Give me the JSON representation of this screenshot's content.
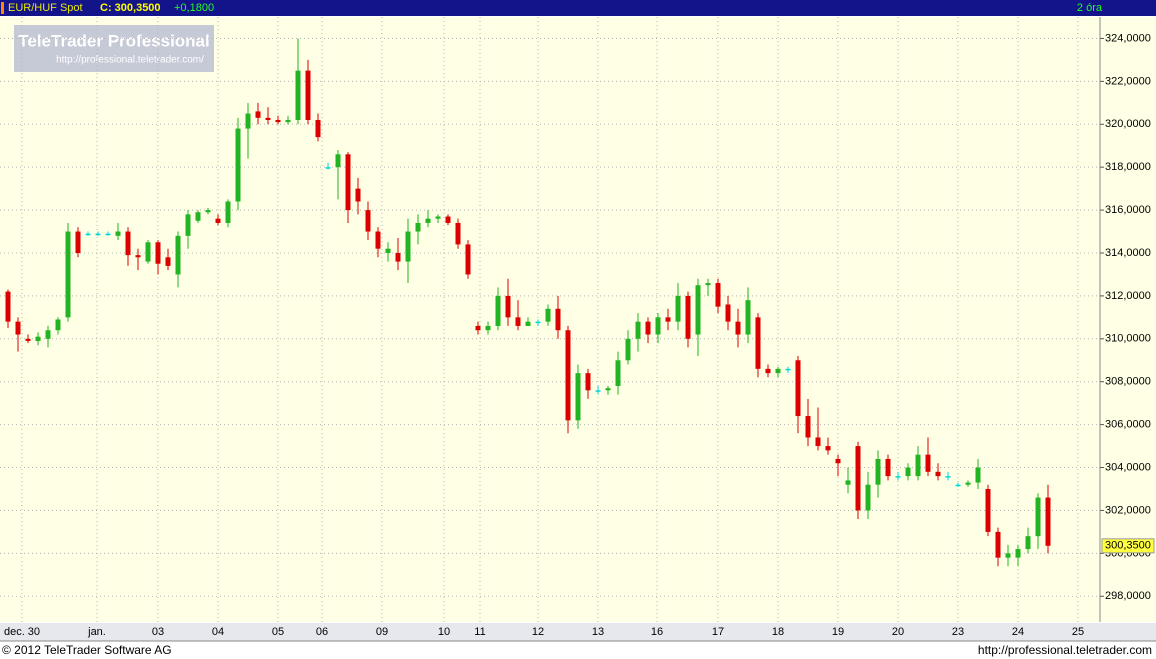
{
  "header": {
    "symbol": "EUR/HUF Spot",
    "close_text": "C: 300,3500",
    "change_text": "+0,1800",
    "interval": "2 óra"
  },
  "logo": {
    "title": "TeleTrader Professional",
    "url": "http://professional.teletrader.com/"
  },
  "footer": {
    "copyright": "© 2012 TeleTrader Software AG",
    "url": "http://professional.teletrader.com"
  },
  "chart_data": {
    "type": "candlestick",
    "up_color": "#22b422",
    "down_color": "#dd0000",
    "flat_color": "#00d8d8",
    "series": [
      {
        "name": "EUR/HUF Spot",
        "open": [
          312.2,
          310.8,
          310.0,
          309.9,
          310.0,
          310.4,
          311.0,
          315.0,
          314.9,
          314.9,
          314.9,
          314.8,
          315.0,
          313.9,
          313.6,
          314.5,
          313.8,
          313.0,
          314.8,
          315.5,
          315.9,
          315.6,
          315.4,
          316.4,
          319.8,
          320.6,
          320.3,
          320.2,
          320.1,
          320.2,
          322.5,
          320.2,
          318.0,
          318.0,
          318.6,
          317.0,
          316.0,
          315.0,
          314.0,
          314.0,
          313.6,
          315.0,
          315.4,
          315.6,
          315.7,
          315.4,
          314.4,
          310.6,
          310.4,
          310.6,
          312.0,
          311.0,
          310.6,
          310.8,
          310.8,
          311.4,
          310.4,
          306.2,
          308.4,
          307.6,
          307.6,
          307.8,
          309.0,
          310.0,
          310.8,
          310.2,
          311.0,
          310.8,
          312.0,
          310.2,
          312.5,
          312.6,
          311.6,
          310.8,
          310.2,
          311.0,
          308.6,
          308.4,
          308.6,
          309.0,
          306.4,
          305.4,
          305.0,
          304.4,
          303.2,
          305.0,
          302.0,
          303.2,
          304.4,
          303.6,
          303.6,
          303.6,
          304.6,
          303.8,
          303.6,
          303.2,
          303.2,
          303.3,
          303.0,
          301.0,
          299.8,
          299.8,
          300.2,
          300.8,
          302.6
        ],
        "high": [
          312.3,
          311.0,
          310.2,
          310.3,
          310.6,
          311.0,
          315.4,
          315.2,
          315.0,
          315.0,
          315.0,
          315.4,
          315.2,
          314.2,
          314.6,
          314.6,
          314.2,
          315.0,
          316.0,
          316.0,
          316.1,
          315.8,
          316.5,
          320.3,
          321.0,
          321.0,
          320.8,
          320.4,
          320.4,
          324.0,
          323.0,
          320.5,
          318.2,
          318.8,
          318.7,
          317.5,
          316.4,
          315.2,
          314.5,
          314.7,
          315.6,
          315.8,
          316.0,
          315.8,
          315.8,
          315.6,
          314.6,
          310.8,
          310.8,
          312.4,
          312.8,
          311.8,
          311.0,
          310.9,
          311.6,
          312.0,
          310.6,
          308.8,
          308.6,
          307.8,
          307.8,
          309.4,
          310.4,
          311.2,
          311.0,
          311.2,
          311.4,
          312.6,
          312.2,
          312.8,
          312.8,
          312.8,
          312.0,
          311.4,
          312.4,
          311.2,
          308.8,
          308.7,
          308.7,
          309.2,
          307.2,
          306.8,
          305.4,
          304.6,
          304.0,
          305.2,
          303.8,
          304.8,
          304.6,
          303.8,
          304.2,
          305.0,
          305.4,
          304.2,
          303.8,
          303.3,
          303.4,
          304.4,
          303.2,
          301.2,
          300.4,
          300.4,
          301.2,
          302.8,
          303.2
        ],
        "low": [
          310.5,
          309.4,
          309.8,
          309.7,
          309.6,
          310.2,
          310.8,
          313.8,
          314.8,
          314.8,
          314.8,
          314.6,
          313.4,
          313.2,
          313.5,
          313.0,
          313.2,
          312.4,
          314.2,
          315.4,
          315.8,
          315.3,
          315.2,
          316.0,
          318.4,
          320.0,
          320.0,
          320.0,
          320.0,
          320.0,
          320.0,
          319.2,
          317.9,
          316.5,
          315.4,
          315.8,
          314.6,
          313.8,
          313.6,
          313.2,
          312.6,
          314.4,
          315.2,
          315.4,
          315.3,
          314.2,
          312.8,
          310.2,
          310.2,
          310.4,
          310.6,
          310.4,
          310.6,
          310.6,
          310.6,
          310.0,
          305.6,
          305.8,
          307.2,
          307.4,
          307.4,
          307.4,
          308.8,
          309.4,
          309.8,
          309.8,
          310.4,
          310.4,
          309.6,
          309.2,
          312.0,
          311.2,
          310.4,
          309.6,
          309.8,
          308.2,
          308.2,
          308.2,
          308.4,
          305.6,
          305.0,
          304.8,
          304.6,
          303.6,
          302.8,
          301.6,
          301.6,
          302.6,
          303.4,
          303.4,
          303.4,
          303.4,
          303.6,
          303.4,
          303.4,
          303.1,
          303.1,
          303.0,
          300.8,
          299.4,
          299.4,
          299.4,
          300.0,
          300.2,
          300.0
        ],
        "close": [
          310.8,
          310.2,
          309.9,
          310.1,
          310.4,
          310.9,
          315.0,
          314.0,
          314.9,
          314.9,
          314.9,
          315.0,
          313.9,
          313.8,
          314.5,
          313.5,
          313.4,
          314.8,
          315.8,
          315.9,
          316.0,
          315.4,
          316.4,
          319.8,
          320.5,
          320.3,
          320.2,
          320.1,
          320.2,
          322.5,
          320.2,
          319.4,
          318.0,
          318.6,
          316.0,
          316.4,
          315.0,
          314.2,
          314.2,
          313.6,
          315.0,
          315.4,
          315.6,
          315.7,
          315.4,
          314.4,
          313.0,
          310.4,
          310.6,
          312.0,
          311.0,
          310.6,
          310.8,
          310.8,
          311.4,
          310.4,
          306.2,
          308.4,
          307.6,
          307.6,
          307.7,
          309.0,
          310.0,
          310.8,
          310.2,
          311.0,
          310.8,
          312.0,
          310.0,
          312.5,
          312.6,
          311.5,
          310.8,
          310.2,
          311.8,
          308.6,
          308.4,
          308.6,
          308.6,
          306.4,
          305.4,
          305.0,
          304.8,
          304.2,
          303.4,
          302.0,
          303.2,
          304.4,
          303.6,
          303.6,
          304.0,
          304.6,
          303.8,
          303.6,
          303.6,
          303.2,
          303.3,
          304.0,
          301.0,
          299.8,
          300.0,
          300.2,
          300.8,
          302.6,
          300.35
        ]
      }
    ],
    "last": {
      "value": 300.35,
      "label": "300,3500"
    },
    "xlim": [
      -0.8,
      109.2
    ],
    "xticks": [
      {
        "value": 1.4,
        "label": "dec. 30"
      },
      {
        "value": 8.9,
        "label": "jan."
      },
      {
        "value": 15,
        "label": "03"
      },
      {
        "value": 21,
        "label": "04"
      },
      {
        "value": 27,
        "label": "05"
      },
      {
        "value": 31.4,
        "label": "06"
      },
      {
        "value": 37.4,
        "label": "09"
      },
      {
        "value": 43.6,
        "label": "10"
      },
      {
        "value": 47.2,
        "label": "11"
      },
      {
        "value": 53,
        "label": "12"
      },
      {
        "value": 59,
        "label": "13"
      },
      {
        "value": 64.9,
        "label": "16"
      },
      {
        "value": 71,
        "label": "17"
      },
      {
        "value": 77,
        "label": "18"
      },
      {
        "value": 83,
        "label": "19"
      },
      {
        "value": 89,
        "label": "20"
      },
      {
        "value": 95,
        "label": "23"
      },
      {
        "value": 101,
        "label": "24"
      },
      {
        "value": 107,
        "label": "25"
      }
    ],
    "ylim": [
      296.8,
      325
    ],
    "yticks": [
      {
        "value": 298,
        "label": "298,0000"
      },
      {
        "value": 300,
        "label": "300,0000"
      },
      {
        "value": 302,
        "label": "302,0000"
      },
      {
        "value": 304,
        "label": "304,0000"
      },
      {
        "value": 306,
        "label": "306,0000"
      },
      {
        "value": 308,
        "label": "308,0000"
      },
      {
        "value": 310,
        "label": "310,0000"
      },
      {
        "value": 312,
        "label": "312,0000"
      },
      {
        "value": 314,
        "label": "314,0000"
      },
      {
        "value": 316,
        "label": "316,0000"
      },
      {
        "value": 318,
        "label": "318,0000"
      },
      {
        "value": 320,
        "label": "320,0000"
      },
      {
        "value": 322,
        "label": "322,0000"
      },
      {
        "value": 324,
        "label": "324,0000"
      }
    ],
    "grid": true
  }
}
